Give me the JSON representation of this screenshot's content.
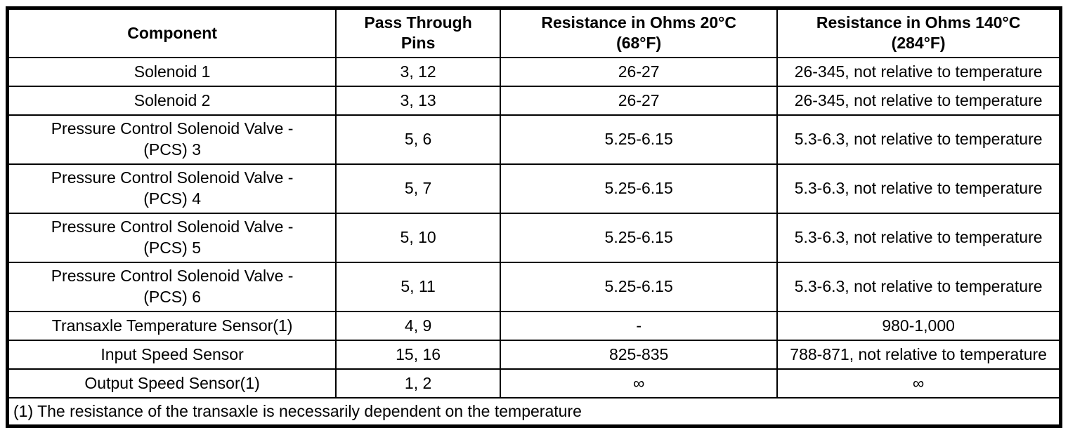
{
  "table": {
    "headers": [
      "Component",
      "Pass Through\nPins",
      "Resistance in Ohms 20°C\n(68°F)",
      "Resistance in Ohms 140°C\n(284°F)"
    ],
    "rows": [
      {
        "cells": [
          "Solenoid 1",
          "3, 12",
          "26-27",
          "26-345, not relative to temperature"
        ]
      },
      {
        "cells": [
          "Solenoid 2",
          "3, 13",
          "26-27",
          "26-345, not relative to temperature"
        ]
      },
      {
        "cells": [
          "Pressure Control Solenoid Valve -\n(PCS) 3",
          "5, 6",
          "5.25-6.15",
          "5.3-6.3, not relative to temperature"
        ]
      },
      {
        "cells": [
          "Pressure Control Solenoid Valve -\n(PCS) 4",
          "5, 7",
          "5.25-6.15",
          "5.3-6.3, not relative to temperature"
        ]
      },
      {
        "cells": [
          "Pressure Control Solenoid Valve -\n(PCS) 5",
          "5, 10",
          "5.25-6.15",
          "5.3-6.3, not relative to temperature"
        ]
      },
      {
        "cells": [
          "Pressure Control Solenoid Valve -\n(PCS) 6",
          "5, 11",
          "5.25-6.15",
          "5.3-6.3, not relative to temperature"
        ]
      },
      {
        "cells": [
          "Transaxle Temperature Sensor(1)",
          "4, 9",
          "-",
          "980-1,000"
        ]
      },
      {
        "cells": [
          "Input Speed Sensor",
          "15, 16",
          "825-835",
          "788-871, not relative to temperature"
        ]
      },
      {
        "cells": [
          "Output Speed Sensor(1)",
          "1, 2",
          "∞",
          "∞"
        ]
      }
    ],
    "footnote": "(1) The resistance of the transaxle is necessarily dependent on the temperature"
  }
}
